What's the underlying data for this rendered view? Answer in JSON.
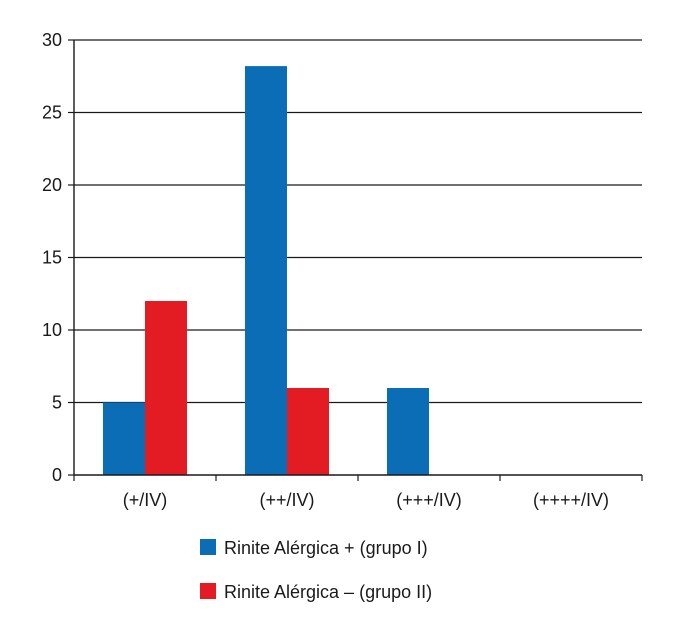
{
  "chart_data": {
    "type": "bar",
    "categories": [
      "(+/IV)",
      "(++/IV)",
      "(+++/IV)",
      "(++++/IV)"
    ],
    "series": [
      {
        "name": "Rinite Alérgica + (grupo I)",
        "values": [
          5,
          28.2,
          6,
          0
        ],
        "color": "#0a6db5"
      },
      {
        "name": "Rinite Alérgica – (grupo II)",
        "values": [
          12,
          6,
          0,
          0
        ],
        "color": "#e31b23"
      }
    ],
    "y_ticks": [
      "0",
      "5",
      "10",
      "15",
      "20",
      "25",
      "30"
    ],
    "ylim": [
      0,
      30
    ],
    "grid": true,
    "legend_position": "bottom-center"
  }
}
